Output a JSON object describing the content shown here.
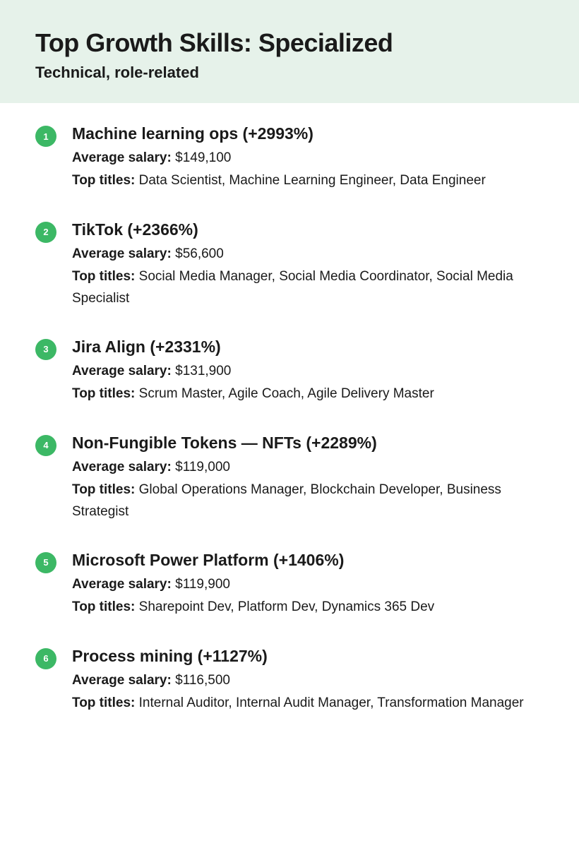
{
  "header": {
    "title": "Top Growth Skills: Specialized",
    "subtitle": "Technical, role-related",
    "background_color": "#e6f2ea",
    "title_color": "#000000",
    "subtitle_color": "#000000"
  },
  "badge_color": "#3cb865",
  "text_color": "#1a1a1a",
  "labels": {
    "avg_salary": "Average salary:",
    "top_titles": "Top titles:"
  },
  "skills": [
    {
      "rank": "1",
      "title": "Machine learning ops (+2993%)",
      "avg_salary": "$149,100",
      "top_titles": "Data Scientist, Machine Learning Engineer, Data Engineer"
    },
    {
      "rank": "2",
      "title": "TikTok (+2366%)",
      "avg_salary": "$56,600",
      "top_titles": "Social Media  Manager, Social Media Coordinator, Social Media Specialist"
    },
    {
      "rank": "3",
      "title": "Jira Align (+2331%)",
      "avg_salary": "$131,900",
      "top_titles": "Scrum Master, Agile Coach, Agile Delivery Master"
    },
    {
      "rank": "4",
      "title": "Non-Fungible Tokens — NFTs (+2289%)",
      "avg_salary": "$119,000",
      "top_titles": "Global Operations Manager, Blockchain Developer, Business Strategist"
    },
    {
      "rank": "5",
      "title": "Microsoft Power Platform (+1406%)",
      "avg_salary": "$119,900",
      "top_titles": "Sharepoint Dev, Platform Dev, Dynamics 365 Dev"
    },
    {
      "rank": "6",
      "title": "Process mining (+1127%)",
      "avg_salary": "$116,500",
      "top_titles": "Internal Auditor, Internal Audit Manager, Transformation Manager"
    }
  ]
}
